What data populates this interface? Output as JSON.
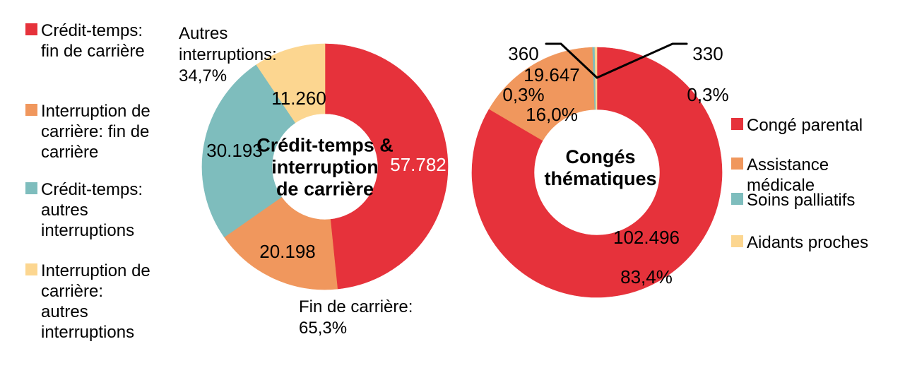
{
  "figure": {
    "background": "#FFFFFF"
  },
  "chart_data": [
    {
      "type": "donut",
      "title": "Crédit-temps & interruption de carrière",
      "center_label": "Crédit-temps &\ninterruption\nde carrière",
      "legend_position": "left",
      "slices": [
        {
          "id": "credit-temps-fin-de-carriere",
          "name": "Crédit-temps: fin de carrière",
          "value": 57782,
          "display_value": "57.782",
          "color": "#E6323B",
          "label_color": "#FFFFFF"
        },
        {
          "id": "interruption-carriere-fin-de-carriere",
          "name": "Interruption de carrière: fin de carrière",
          "value": 20198,
          "display_value": "20.198",
          "color": "#F0975D",
          "label_color": "#000000"
        },
        {
          "id": "credit-temps-autres-interruptions",
          "name": "Crédit-temps: autres interruptions",
          "value": 30193,
          "display_value": "30.193",
          "color": "#7EBDBD",
          "label_color": "#000000"
        },
        {
          "id": "interruption-carriere-autres-interruptions",
          "name": "Interruption de carrière: autres interruptions",
          "value": 11260,
          "display_value": "11.260",
          "color": "#FCD690",
          "label_color": "#000000"
        }
      ],
      "annotations": [
        {
          "id": "autres-interruptions",
          "text": "Autres\ninterruptions:\n34,7%"
        },
        {
          "id": "fin-de-carriere",
          "text": "Fin de carrière:\n65,3%"
        }
      ]
    },
    {
      "type": "donut",
      "title": "Congés thématiques",
      "center_label": "Congés\nthématiques",
      "legend_position": "right",
      "slices": [
        {
          "id": "conge-parental",
          "name": "Congé parental",
          "value": 102496,
          "display_value": "102.496",
          "display_pct": "83,4%",
          "color": "#E6323B",
          "label_color": "#000000"
        },
        {
          "id": "assistance-medicale",
          "name": "Assistance médicale",
          "value": 19647,
          "display_value": "19.647",
          "display_pct": "16,0%",
          "color": "#F0975D",
          "label_color": "#000000"
        },
        {
          "id": "soins-palliatifs",
          "name": "Soins palliatifs",
          "value": 360,
          "display_value": "360",
          "display_pct": "0,3%",
          "color": "#7EBDBD",
          "label_color": "#000000"
        },
        {
          "id": "aidants-proches",
          "name": "Aidants proches",
          "value": 330,
          "display_value": "330",
          "display_pct": "0,3%",
          "color": "#FCD690",
          "label_color": "#000000"
        }
      ]
    }
  ],
  "legends": {
    "left": {
      "items": [
        {
          "label": "Crédit-temps:\nfin de carrière",
          "color": "#E6323B"
        },
        {
          "label": "Interruption de\ncarrière: fin de\ncarrière",
          "color": "#F0975D"
        },
        {
          "label": "Crédit-temps:\nautres\ninterruptions",
          "color": "#7EBDBD"
        },
        {
          "label": "Interruption de\ncarrière:\nautres\ninterruptions",
          "color": "#FCD690"
        }
      ]
    },
    "right": {
      "items": [
        {
          "label": "Congé parental",
          "color": "#E6323B"
        },
        {
          "label": "Assistance\nmédicale",
          "color": "#F0975D"
        },
        {
          "label": "Soins palliatifs",
          "color": "#7EBDBD"
        },
        {
          "label": "Aidants proches",
          "color": "#FCD690"
        }
      ]
    }
  }
}
